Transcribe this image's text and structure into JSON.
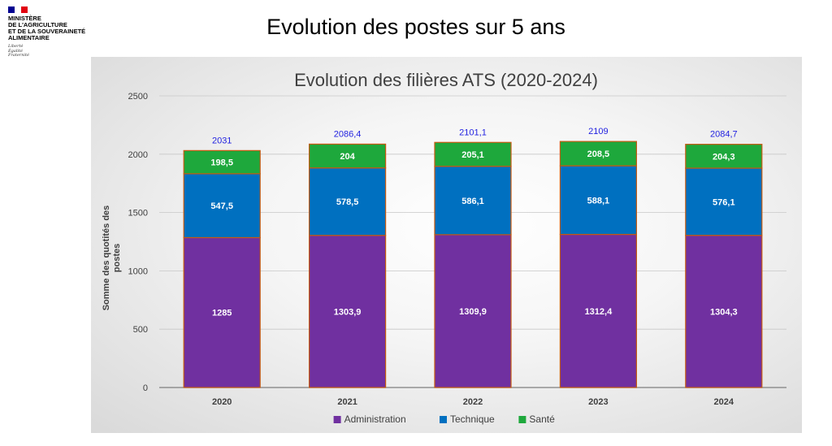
{
  "header": {
    "flag_colors": [
      "#000091",
      "#ffffff",
      "#e1000f"
    ],
    "ministry_name": "MINISTÈRE\nDE L'AGRICULTURE\nET DE LA SOUVERAINETÉ\nALIMENTAIRE",
    "motto": "Liberté\nÉgalité\nFraternité",
    "slide_title": "Evolution des postes sur 5 ans"
  },
  "chart_data": {
    "type": "bar",
    "stacked": true,
    "title": "Evolution des filières ATS (2020-2024)",
    "ylabel": "Somme des quotités des postes",
    "xlabel": "",
    "ylim": [
      0,
      2500
    ],
    "yticks": [
      0,
      500,
      1000,
      1500,
      2000,
      2500
    ],
    "categories": [
      "2020",
      "2021",
      "2022",
      "2023",
      "2024"
    ],
    "series": [
      {
        "name": "Administration",
        "color": "#7030a0",
        "values": [
          1285,
          1303.9,
          1309.9,
          1312.4,
          1304.3
        ],
        "labels": [
          "1285",
          "1303,9",
          "1309,9",
          "1312,4",
          "1304,3"
        ]
      },
      {
        "name": "Technique",
        "color": "#0070c0",
        "values": [
          547.5,
          578.5,
          586.1,
          588.1,
          576.1
        ],
        "labels": [
          "547,5",
          "578,5",
          "586,1",
          "588,1",
          "576,1"
        ]
      },
      {
        "name": "Santé",
        "color": "#1ea83c",
        "values": [
          198.5,
          204,
          205.1,
          208.5,
          204.3
        ],
        "labels": [
          "198,5",
          "204",
          "205,1",
          "208,5",
          "204,3"
        ]
      }
    ],
    "totals": [
      2031,
      2086.4,
      2101.1,
      2109,
      2084.7
    ],
    "total_labels": [
      "2031",
      "2086,4",
      "2101,1",
      "2109",
      "2084,7"
    ],
    "total_label_color": "#1f1fe0",
    "bar_border_color": "#c55a11",
    "gridlines": true,
    "legend_position": "bottom"
  }
}
